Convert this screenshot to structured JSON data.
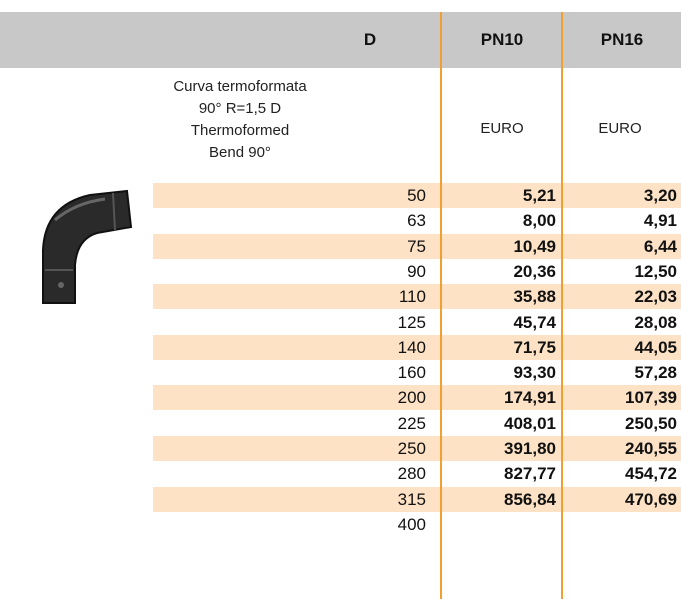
{
  "header": {
    "d": "D",
    "pn10": "PN10",
    "pn16": "PN16"
  },
  "description": [
    "Curva termoformata",
    "90° R=1,5 D",
    "Thermoformed",
    "Bend 90°"
  ],
  "units": {
    "pn10": "EURO",
    "pn16": "EURO"
  },
  "table": {
    "rows": [
      [
        "50",
        "5,21",
        "3,20"
      ],
      [
        "63",
        "8,00",
        "4,91"
      ],
      [
        "75",
        "10,49",
        "6,44"
      ],
      [
        "90",
        "20,36",
        "12,50"
      ],
      [
        "110",
        "35,88",
        "22,03"
      ],
      [
        "125",
        "45,74",
        "28,08"
      ],
      [
        "140",
        "71,75",
        "44,05"
      ],
      [
        "160",
        "93,30",
        "57,28"
      ],
      [
        "200",
        "174,91",
        "107,39"
      ],
      [
        "225",
        "408,01",
        "250,50"
      ],
      [
        "250",
        "391,80",
        "240,55"
      ],
      [
        "280",
        "827,77",
        "454,72"
      ],
      [
        "315",
        "856,84",
        "470,69"
      ],
      [
        "400"
      ]
    ]
  }
}
